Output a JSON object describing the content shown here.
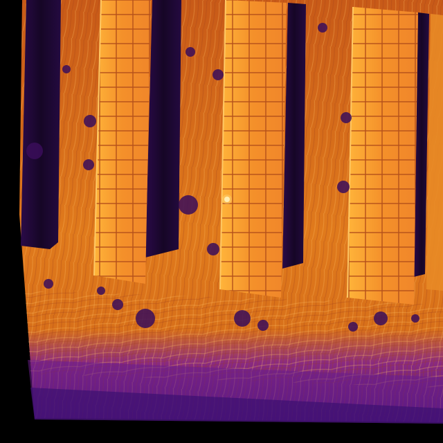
{
  "image": {
    "kind": "thermal-aerial-photo",
    "palette": "inferno",
    "subject": "solar-panel-rows",
    "colors": {
      "background": "#000000",
      "ground_warm": "#e07a1c",
      "ground_hot": "#f7a52c",
      "panel_fill": "#f4962a",
      "panel_edge": "#ffbf5a",
      "panel_grid": "#b8541a",
      "shadow": "#1a0830",
      "shadow_mid": "#3a0d5a",
      "foreground_cool": "#5a1a8a",
      "hotspot": "#fff4c8"
    }
  }
}
